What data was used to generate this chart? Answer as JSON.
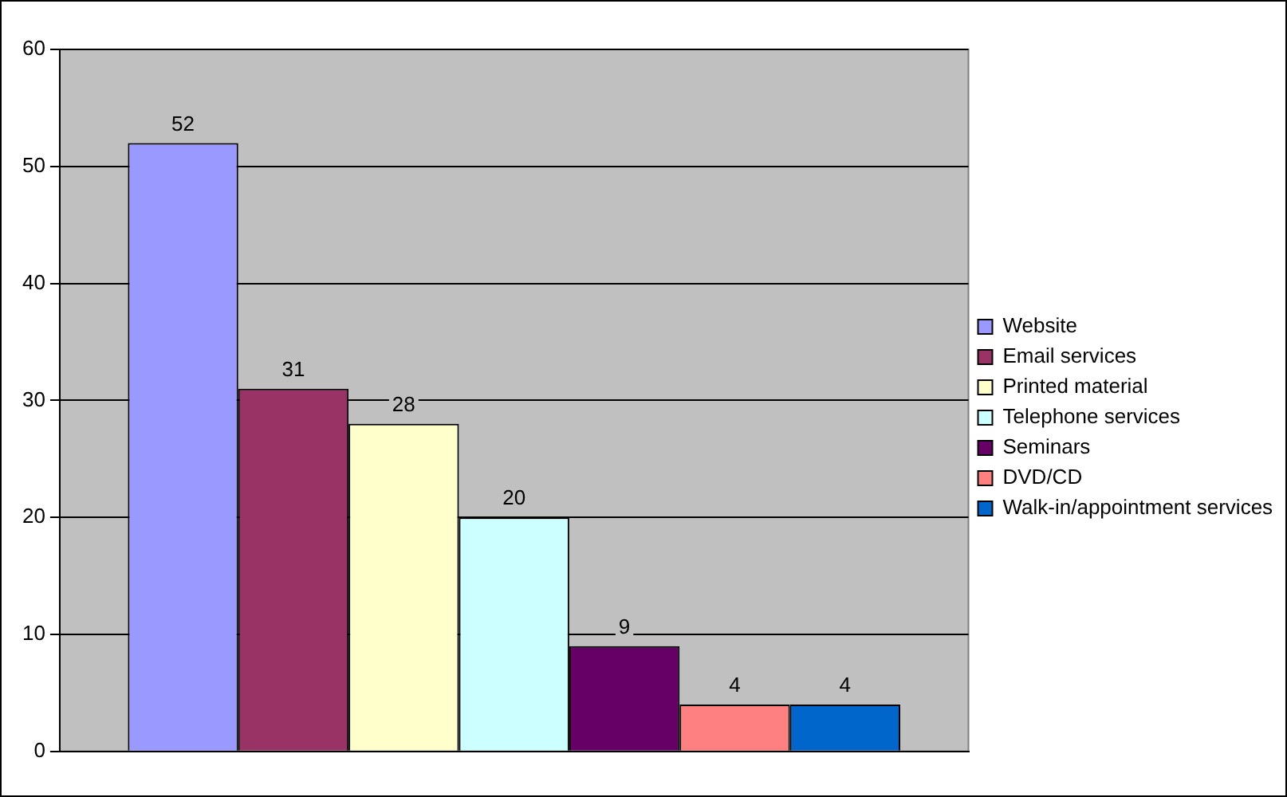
{
  "chart_data": {
    "type": "bar",
    "categories": [
      null
    ],
    "series": [
      {
        "name": "Website",
        "color": "#9999ff",
        "values": [
          52
        ]
      },
      {
        "name": "Email services",
        "color": "#993366",
        "values": [
          31
        ]
      },
      {
        "name": "Printed material",
        "color": "#ffffcc",
        "values": [
          28
        ]
      },
      {
        "name": "Telephone services",
        "color": "#ccffff",
        "values": [
          20
        ]
      },
      {
        "name": "Seminars",
        "color": "#660066",
        "values": [
          9
        ]
      },
      {
        "name": "DVD/CD",
        "color": "#ff8080",
        "values": [
          4
        ]
      },
      {
        "name": "Walk-in/appointment services",
        "color": "#0066cc",
        "values": [
          4
        ]
      }
    ],
    "ylim": [
      0,
      60
    ],
    "yticks": [
      0,
      10,
      20,
      30,
      40,
      50,
      60
    ],
    "grid": "y",
    "legend": "right",
    "data_labels": true
  }
}
